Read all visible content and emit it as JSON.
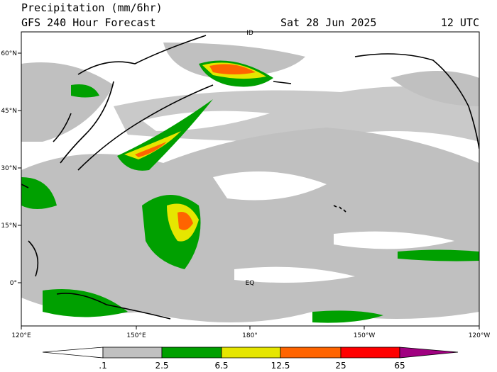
{
  "header": {
    "title": "Precipitation (mm/6hr)",
    "subtitle": "GFS 240 Hour Forecast",
    "date": "Sat 28 Jun 2025",
    "time": "12 UTC"
  },
  "map": {
    "lon_labels": [
      "120°E",
      "150°E",
      "180°",
      "150°W",
      "120°W"
    ],
    "lat_labels": [
      "60°N",
      "45°N",
      "30°N",
      "15°N",
      "0°"
    ],
    "annotations": [
      "ID",
      "EQ"
    ]
  },
  "colorbar": {
    "labels": [
      ".1",
      "2.5",
      "6.5",
      "12.5",
      "25",
      "65"
    ]
  }
}
